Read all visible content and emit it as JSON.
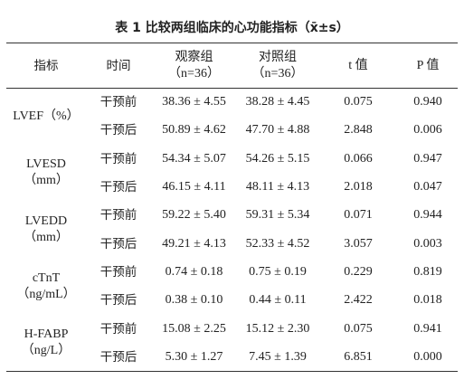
{
  "title": "表 1  比较两组临床的心功能指标（x̄±s）",
  "table": {
    "header": [
      [
        "指标"
      ],
      [
        "时间"
      ],
      [
        "观察组",
        "（n=36）"
      ],
      [
        "对照组",
        "（n=36）"
      ],
      [
        "t 值"
      ],
      [
        "P 值"
      ]
    ],
    "groups": [
      {
        "indicator": [
          "LVEF（%）"
        ],
        "rows": [
          [
            "干预前",
            "38.36 ± 4.55",
            "38.28 ± 4.45",
            "0.075",
            "0.940"
          ],
          [
            "干预后",
            "50.89 ± 4.62",
            "47.70 ± 4.88",
            "2.848",
            "0.006"
          ]
        ]
      },
      {
        "indicator": [
          "LVESD",
          "（mm）"
        ],
        "rows": [
          [
            "干预前",
            "54.34 ± 5.07",
            "54.26 ± 5.15",
            "0.066",
            "0.947"
          ],
          [
            "干预后",
            "46.15 ± 4.11",
            "48.11 ± 4.13",
            "2.018",
            "0.047"
          ]
        ]
      },
      {
        "indicator": [
          "LVEDD",
          "（mm）"
        ],
        "rows": [
          [
            "干预前",
            "59.22 ± 5.40",
            "59.31 ± 5.34",
            "0.071",
            "0.944"
          ],
          [
            "干预后",
            "49.21 ± 4.13",
            "52.33 ± 4.52",
            "3.057",
            "0.003"
          ]
        ]
      },
      {
        "indicator": [
          "cTnT",
          "（ng/mL）"
        ],
        "rows": [
          [
            "干预前",
            "0.74 ± 0.18",
            "0.75 ± 0.19",
            "0.229",
            "0.819"
          ],
          [
            "干预后",
            "0.38 ± 0.10",
            "0.44 ± 0.11",
            "2.422",
            "0.018"
          ]
        ]
      },
      {
        "indicator": [
          "H-FABP",
          "（ng/L）"
        ],
        "rows": [
          [
            "干预前",
            "15.08 ± 2.25",
            "15.12 ± 2.30",
            "0.075",
            "0.941"
          ],
          [
            "干预后",
            "5.30 ± 1.27",
            "7.45 ± 1.39",
            "6.851",
            "0.000"
          ]
        ]
      }
    ]
  }
}
